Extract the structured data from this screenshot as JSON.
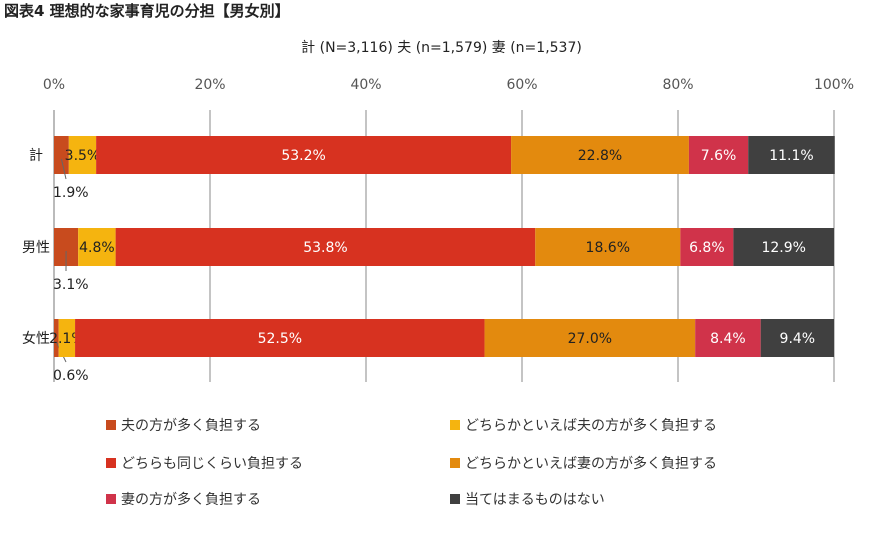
{
  "chart_data": {
    "type": "bar",
    "orientation": "horizontal",
    "stacked": true,
    "title": "図表4 理想的な家事育児の分担【男女別】",
    "subtitle": "計 (N=3,116) 夫 (n=1,579) 妻 (n=1,537)",
    "xlim": [
      0,
      100
    ],
    "xticks": [
      "0%",
      "20%",
      "40%",
      "60%",
      "80%",
      "100%"
    ],
    "categories": [
      "計",
      "男性",
      "女性"
    ],
    "series": [
      {
        "name": "夫の方が多く負担する",
        "color": "#C84B1E",
        "values": [
          1.9,
          3.1,
          0.6
        ],
        "labels": [
          "1.9%",
          "3.1%",
          "0.6%"
        ]
      },
      {
        "name": "どちらかといえば夫の方が多く負担する",
        "color": "#F5B40F",
        "values": [
          3.5,
          4.8,
          2.1
        ],
        "labels": [
          "3.5%",
          "4.8%",
          "2.1%"
        ]
      },
      {
        "name": "どちらも同じくらい負担する",
        "color": "#D73220",
        "values": [
          53.2,
          53.8,
          52.5
        ],
        "labels": [
          "53.2%",
          "53.8%",
          "52.5%"
        ]
      },
      {
        "name": "どちらかといえば妻の方が多く負担する",
        "color": "#E38A0E",
        "values": [
          22.8,
          18.6,
          27.0
        ],
        "labels": [
          "22.8%",
          "18.6%",
          "27.0%"
        ]
      },
      {
        "name": "妻の方が多く負担する",
        "color": "#D0334A",
        "values": [
          7.6,
          6.8,
          8.4
        ],
        "labels": [
          "7.6%",
          "6.8%",
          "8.4%"
        ]
      },
      {
        "name": "当てはまるものはない",
        "color": "#404040",
        "values": [
          11.1,
          12.9,
          9.4
        ],
        "labels": [
          "11.1%",
          "12.9%",
          "9.4%"
        ]
      }
    ],
    "label_colors": [
      "#222222",
      "#222222",
      "#ffffff",
      "#222222",
      "#ffffff",
      "#ffffff"
    ],
    "gridlines": true,
    "legend_position": "bottom"
  }
}
